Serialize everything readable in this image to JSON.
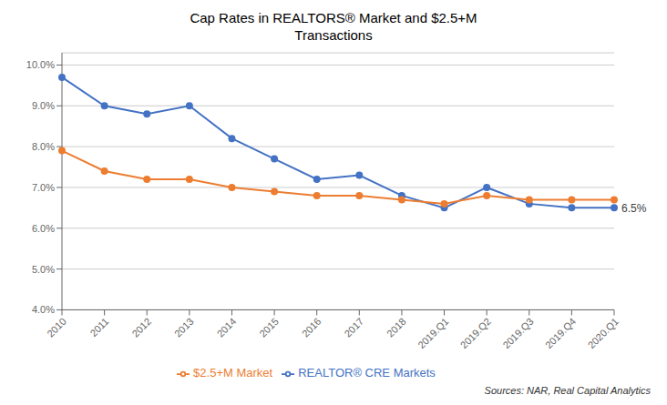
{
  "chart_data": {
    "type": "line",
    "title": "Cap Rates in REALTORS® Market and $2.5+M\nTransactions",
    "categories": [
      "2010",
      "2011",
      "2012",
      "2013",
      "2014",
      "2015",
      "2016",
      "2017",
      "2018",
      "2019.Q1",
      "2019.Q2",
      "2019.Q3",
      "2019.Q4",
      "2020.Q1"
    ],
    "series": [
      {
        "name": "REALTOR® CRE Markets",
        "color": "#4472C4",
        "values": [
          0.097,
          0.09,
          0.088,
          0.09,
          0.082,
          0.077,
          0.072,
          0.073,
          0.068,
          0.065,
          0.07,
          0.066,
          0.065,
          0.065
        ]
      },
      {
        "name": "$2.5+M Market",
        "color": "#ED7D31",
        "values": [
          0.079,
          0.074,
          0.072,
          0.072,
          0.07,
          0.069,
          0.068,
          0.068,
          0.067,
          0.066,
          0.068,
          0.067,
          0.067,
          0.067
        ]
      }
    ],
    "ylim": [
      0.04,
      0.103
    ],
    "yticks": [
      {
        "value": 0.04,
        "label": "4.0%"
      },
      {
        "value": 0.05,
        "label": "5.0%"
      },
      {
        "value": 0.06,
        "label": "6.0%"
      },
      {
        "value": 0.07,
        "label": "7.0%"
      },
      {
        "value": 0.08,
        "label": "8.0%"
      },
      {
        "value": 0.09,
        "label": "9.0%"
      },
      {
        "value": 0.1,
        "label": "10.0%"
      }
    ],
    "annotations": [
      {
        "text": "6.5%",
        "x": "2020.Q1",
        "y": 0.065
      }
    ],
    "source": "Sources: NAR, Real Capital Analytics",
    "grid": true,
    "legend": "bottom",
    "marker": "circle"
  }
}
